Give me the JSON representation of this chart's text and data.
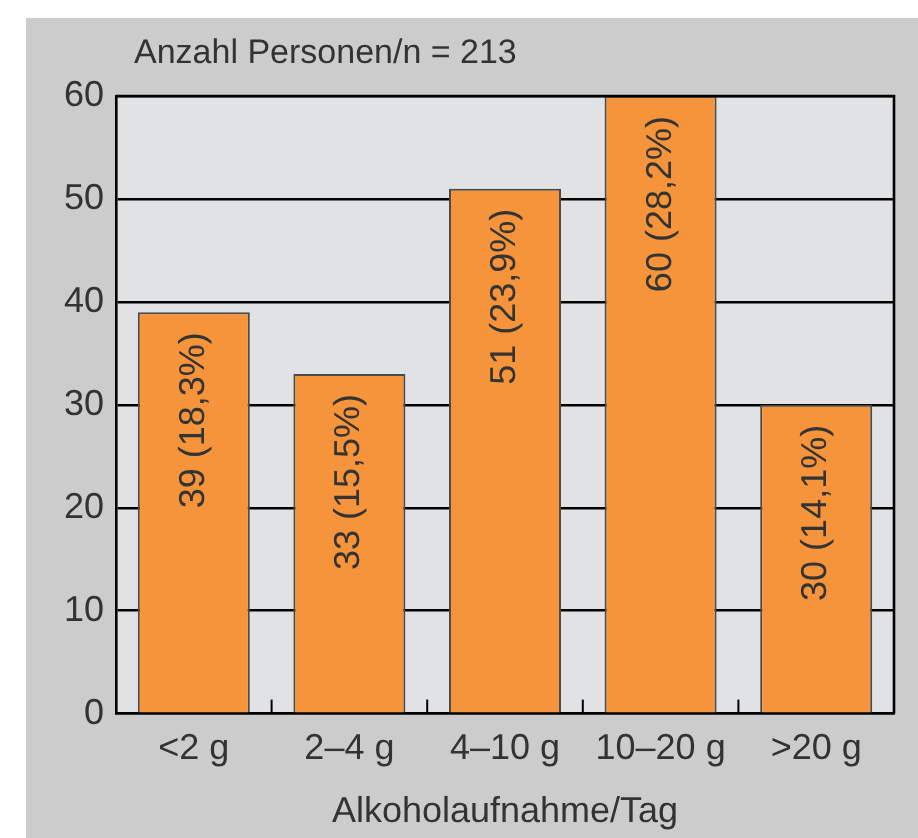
{
  "chart_data": {
    "type": "bar",
    "ylabel": "Anzahl Personen/n = 213",
    "xlabel": "Alkoholaufnahme/Tag",
    "categories": [
      "<2 g",
      "2–4 g",
      "4–10 g",
      "10–20 g",
      ">20 g"
    ],
    "values": [
      39,
      33,
      51,
      60,
      30
    ],
    "color": "#f5943a",
    "value_labels": [
      "39 (18,3%)",
      "33 (15,5%)",
      "51 (23,9%)",
      "60 (28,2%)",
      "30 (14,1%)"
    ],
    "ylim": [
      0,
      60
    ],
    "yticks": [
      0,
      10,
      20,
      30,
      40,
      50,
      60
    ],
    "grid": "y",
    "legend": false
  }
}
